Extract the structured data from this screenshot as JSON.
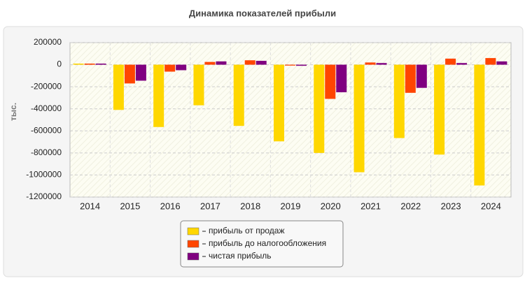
{
  "chart_data": {
    "type": "bar",
    "title": "Динамика показателей прибыли",
    "ylabel": "тыс.",
    "categories": [
      "2014",
      "2015",
      "2016",
      "2017",
      "2018",
      "2019",
      "2020",
      "2021",
      "2022",
      "2023",
      "2024"
    ],
    "series": [
      {
        "name": "прибыль от продаж",
        "color": "#ffd700",
        "values": [
          10000,
          -410000,
          -565000,
          -368000,
          -555000,
          -695000,
          -800000,
          -975000,
          -665000,
          -815000,
          -1095000
        ]
      },
      {
        "name": "прибыль до налогообложения",
        "color": "#ff4500",
        "values": [
          10000,
          -170000,
          -63000,
          25000,
          40000,
          -8000,
          -310000,
          20000,
          -255000,
          55000,
          60000
        ]
      },
      {
        "name": "чистая прибыль",
        "color": "#800080",
        "values": [
          10000,
          -145000,
          -50000,
          30000,
          35000,
          -10000,
          -250000,
          15000,
          -210000,
          15000,
          30000
        ]
      }
    ],
    "ylim": [
      -1200000,
      200000
    ],
    "yticks": [
      -1200000,
      -1000000,
      -800000,
      -600000,
      -400000,
      -200000,
      0,
      200000
    ],
    "grid": true
  }
}
